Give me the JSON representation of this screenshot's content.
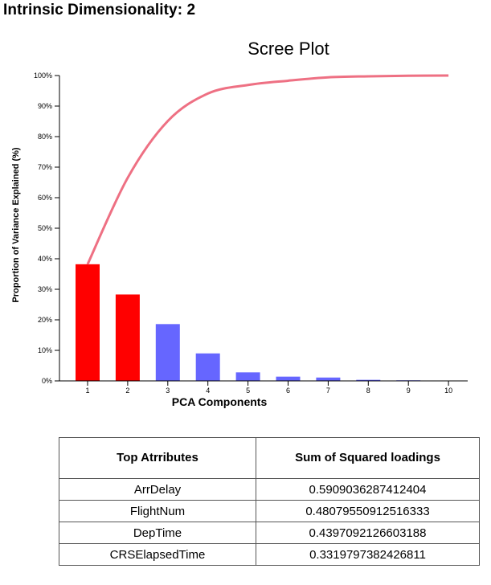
{
  "heading": "Intrinsic Dimensionality: 2",
  "colors": {
    "selected_bar": "#ff0000",
    "other_bar": "#6666ff",
    "cumulative_line": "#ee7083"
  },
  "chart_data": {
    "type": "bar",
    "title": "Scree Plot",
    "xlabel": "PCA Components",
    "ylabel": "Proportion of Variance Explained (%)",
    "categories": [
      "1",
      "2",
      "3",
      "4",
      "5",
      "6",
      "7",
      "8",
      "9",
      "10"
    ],
    "ylim": [
      0,
      100
    ],
    "y_ticks": [
      "0%",
      "10%",
      "20%",
      "30%",
      "40%",
      "50%",
      "60%",
      "70%",
      "80%",
      "90%",
      "100%"
    ],
    "series": [
      {
        "values": [
          38.2,
          28.3,
          18.6,
          9.0,
          2.8,
          1.4,
          1.1,
          0.35,
          0.2,
          0
        ]
      }
    ],
    "cumulative": [
      38.2,
      66.5,
      85.1,
      94.1,
      96.9,
      98.3,
      99.4,
      99.75,
      99.95,
      100
    ],
    "highlighted_count": 2,
    "grid": false
  },
  "table": {
    "headers": [
      "Top Atrributes",
      "Sum of Squared loadings"
    ],
    "rows": [
      [
        "ArrDelay",
        "0.5909036287412404"
      ],
      [
        "FlightNum",
        "0.48079550912516333"
      ],
      [
        "DepTime",
        "0.4397092126603188"
      ],
      [
        "CRSElapsedTime",
        "0.3319797382426811"
      ]
    ]
  }
}
